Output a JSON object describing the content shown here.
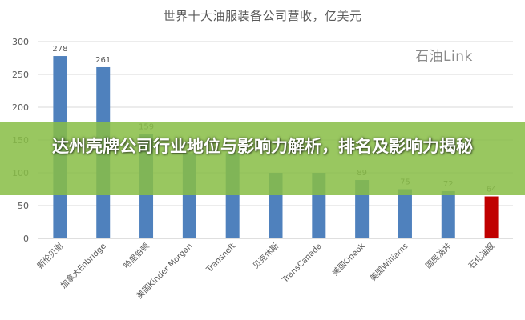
{
  "banner": {
    "headline": "达州壳牌公司行业地位与影响力解析，排名及影响力揭秘"
  },
  "watermark": "石油Link",
  "chart_data": {
    "type": "bar",
    "title": "世界十大油服装备公司营收，亿美元",
    "xlabel": "",
    "ylabel": "",
    "categories": [
      "斯伦贝谢",
      "加拿大Enbridge",
      "哈里伯顿",
      "美国Kinder Morgan",
      "Transneft",
      "贝克休斯",
      "TransCanada",
      "美国Oneok",
      "美国Williams",
      "国民油井",
      "石化油服"
    ],
    "values": [
      278,
      261,
      159,
      130,
      130,
      100,
      100,
      89,
      75,
      72,
      64
    ],
    "data_labels": [
      "278",
      "261",
      "159",
      "",
      "",
      "",
      "",
      "89",
      "75",
      "72",
      "64"
    ],
    "ylim": [
      0,
      300
    ],
    "yticks": [
      "0",
      "50",
      "100",
      "150",
      "200",
      "250",
      "300"
    ],
    "grid": true,
    "colors": {
      "bar": "#4f81bd",
      "highlight_bar": "#c00000",
      "gridline": "#d9d9d9",
      "text": "#595959"
    },
    "highlight_index": 10
  }
}
